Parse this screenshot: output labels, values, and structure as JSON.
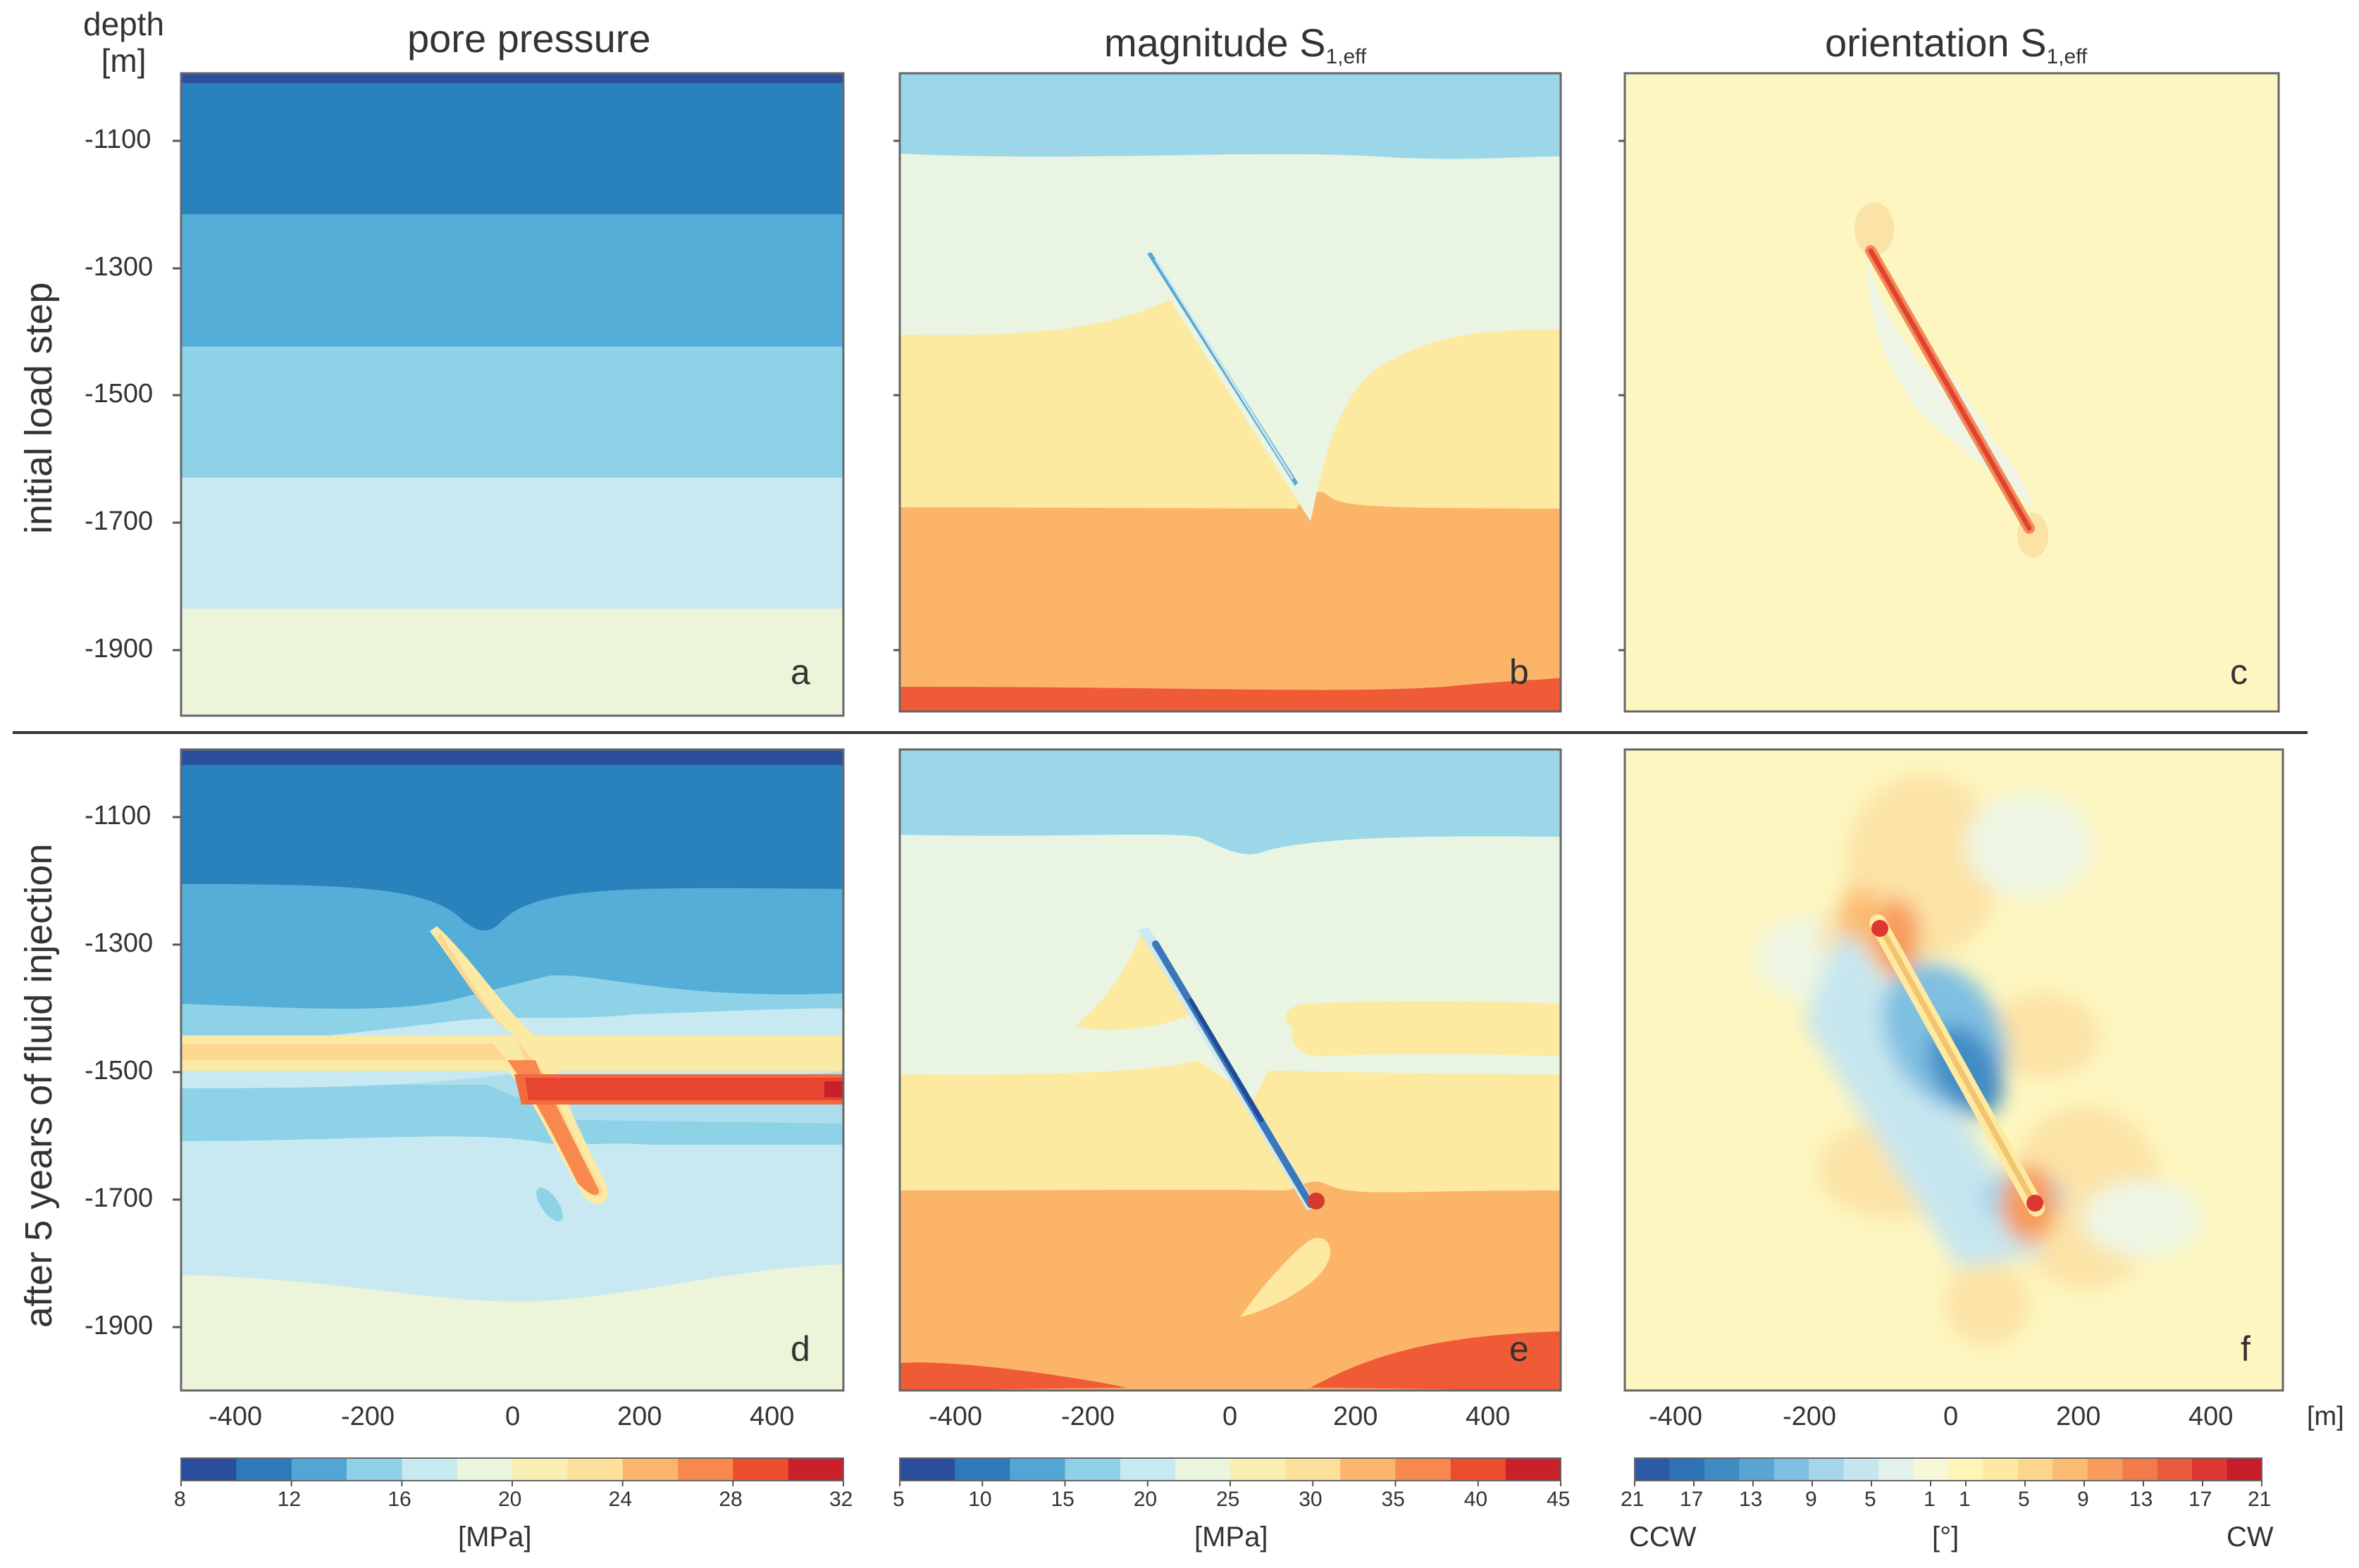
{
  "figure": {
    "depth_label_line1": "depth",
    "depth_label_line2": "[m]",
    "x_unit": "[m]",
    "columns": [
      {
        "title": "pore pressure",
        "sub": ""
      },
      {
        "title": "magnitude S",
        "sub": "1,eff"
      },
      {
        "title": "orientation S",
        "sub": "1,eff"
      }
    ],
    "rows": [
      "initial load step",
      "after 5 years of fluid injection"
    ],
    "panel_letters": [
      "a",
      "b",
      "c",
      "d",
      "e",
      "f"
    ],
    "y_ticks": [
      "-1100",
      "-1300",
      "-1500",
      "-1700",
      "-1900"
    ],
    "x_ticks": [
      "-400",
      "-200",
      "0",
      "200",
      "400"
    ],
    "colorbars": [
      {
        "ticks": [
          "8",
          "12",
          "16",
          "20",
          "24",
          "28",
          "32"
        ],
        "unit": "[MPa]",
        "colors": [
          "#2a4d9c",
          "#2e7ab8",
          "#52a6d4",
          "#8fd0e6",
          "#c7e9f0",
          "#e9f5dc",
          "#f8efb2",
          "#fde09a",
          "#fbb56e",
          "#f7894f",
          "#ea4e2e",
          "#c9202a"
        ]
      },
      {
        "ticks": [
          "5",
          "10",
          "15",
          "20",
          "25",
          "30",
          "35",
          "40",
          "45"
        ],
        "unit": "[MPa]",
        "colors": [
          "#2a4d9c",
          "#2e7ab8",
          "#52a6d4",
          "#8fd0e6",
          "#c7e9f0",
          "#e9f5dc",
          "#f8efb2",
          "#fde09a",
          "#fbb56e",
          "#f7894f",
          "#ea4e2e",
          "#c9202a"
        ]
      },
      {
        "ticks": [
          "21",
          "17",
          "13",
          "9",
          "5",
          "1",
          "1",
          "5",
          "9",
          "13",
          "17",
          "21"
        ],
        "unit": "[°]",
        "left_label": "CCW",
        "right_label": "CW",
        "colors": [
          "#2c5aa4",
          "#2f73b7",
          "#3f8cc5",
          "#5aa5d3",
          "#7fbfe1",
          "#a5d5ea",
          "#c6e6ef",
          "#e2f1ea",
          "#f6f7d6",
          "#fef6b8",
          "#fde9a2",
          "#fcd68c",
          "#fabb73",
          "#f79c5d",
          "#f27b4c",
          "#ea5a3d",
          "#dc3731",
          "#c71c2a"
        ]
      }
    ]
  }
}
